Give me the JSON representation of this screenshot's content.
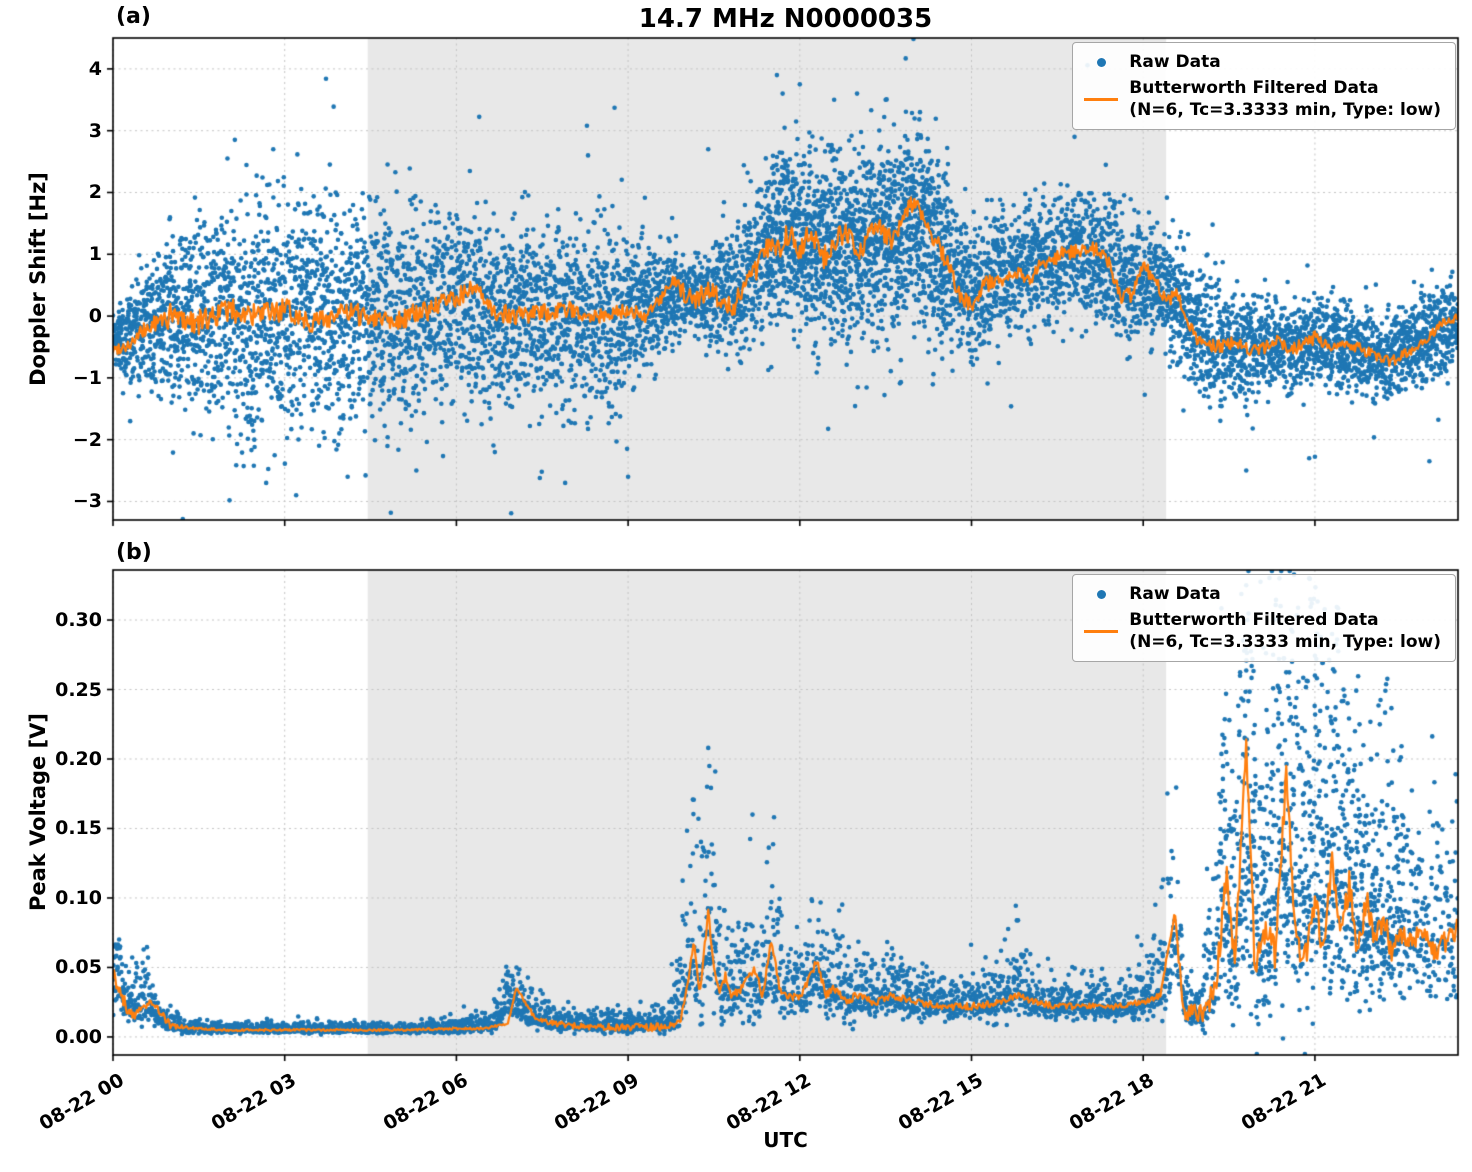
{
  "figure": {
    "title": "14.7 MHz N0000035",
    "xlabel": "UTC",
    "panel_tags": [
      "(a)",
      "(b)"
    ],
    "colors": {
      "raw": "#1f77b4",
      "filtered": "#ff7f0e",
      "shade": "#e8e8e8",
      "grid": "#c4c4c4",
      "axis": "#000000"
    },
    "legend": {
      "raw_label": "Raw Data",
      "filtered_label": "Butterworth Filtered Data",
      "filtered_sublabel": "(N=6, Tc=3.3333 min, Type: low)"
    }
  },
  "chart_data": [
    {
      "type": "scatter",
      "panel": "a",
      "title": "14.7 MHz N0000035",
      "ylabel": "Doppler Shift [Hz]",
      "x_unit": "hours since 08-22 00:00 UTC",
      "xlim": [
        0,
        23.5
      ],
      "ylim": [
        -3.3,
        4.5
      ],
      "yticks": [
        -3,
        -2,
        -1,
        0,
        1,
        2,
        3,
        4
      ],
      "ytick_labels": [
        "−3",
        "−2",
        "−1",
        "0",
        "1",
        "2",
        "3",
        "4"
      ],
      "xticks": [
        0,
        3,
        6,
        9,
        12,
        15,
        18,
        21
      ],
      "xtick_labels": [
        "08-22 00",
        "08-22 03",
        "08-22 06",
        "08-22 09",
        "08-22 12",
        "08-22 15",
        "08-22 18",
        "08-22 21"
      ],
      "shaded_region": [
        4.45,
        18.4
      ],
      "grid": true,
      "legend_position": "upper right",
      "raw_series": {
        "name": "Raw Data",
        "marker": "point",
        "envelope_t": [
          0,
          0.5,
          1.0,
          1.5,
          2.0,
          2.5,
          3.0,
          3.5,
          4.0,
          4.5,
          5.0,
          5.5,
          6.0,
          6.5,
          7.0,
          7.5,
          8.0,
          8.5,
          9.0,
          9.5,
          10.0,
          10.3,
          10.6,
          11.0,
          11.4,
          11.8,
          12.2,
          12.6,
          13.0,
          13.4,
          13.8,
          14.2,
          14.6,
          15.0,
          15.4,
          15.8,
          16.2,
          16.6,
          17.0,
          17.4,
          17.8,
          18.2,
          18.6,
          19.0,
          19.4,
          19.8,
          20.2,
          20.6,
          21.0,
          21.4,
          21.8,
          22.2,
          22.6,
          23.0,
          23.5
        ],
        "envelope_mean": [
          -0.35,
          -0.3,
          0,
          0,
          0,
          0,
          0,
          0,
          0,
          0,
          0,
          0.1,
          0.2,
          0,
          0,
          0,
          0.05,
          0,
          0,
          0.3,
          0.3,
          0.3,
          0.3,
          0.5,
          1.0,
          1.2,
          1.2,
          1.1,
          1.2,
          1.3,
          1.5,
          1.4,
          0.9,
          0.3,
          0.6,
          0.7,
          0.9,
          1.0,
          1.0,
          0.9,
          0.5,
          0.6,
          0.2,
          -0.4,
          -0.5,
          -0.5,
          -0.5,
          -0.5,
          -0.4,
          -0.5,
          -0.6,
          -0.7,
          -0.5,
          -0.3,
          -0.1
        ],
        "envelope_spread": [
          0.35,
          0.8,
          1.2,
          1.5,
          1.6,
          1.7,
          1.6,
          1.6,
          1.6,
          1.5,
          1.5,
          1.5,
          1.5,
          1.4,
          1.3,
          1.3,
          1.3,
          1.3,
          1.2,
          0.8,
          0.5,
          0.6,
          0.8,
          0.9,
          1.2,
          1.3,
          1.4,
          1.4,
          1.4,
          1.4,
          1.3,
          1.3,
          1.2,
          0.9,
          0.9,
          0.9,
          0.9,
          0.9,
          0.9,
          0.9,
          0.9,
          0.8,
          0.9,
          0.9,
          0.8,
          0.7,
          0.6,
          0.6,
          0.6,
          0.6,
          0.6,
          0.6,
          0.6,
          0.6,
          0.6
        ],
        "outliers": [
          [
            0.3,
            -1.7
          ],
          [
            2.0,
            2.55
          ],
          [
            2.8,
            2.7
          ],
          [
            3.2,
            -2.9
          ],
          [
            4.1,
            -2.6
          ],
          [
            5.3,
            -2.5
          ],
          [
            7.9,
            -2.7
          ],
          [
            8.3,
            2.6
          ],
          [
            9.0,
            -2.6
          ],
          [
            10.4,
            2.7
          ],
          [
            11.6,
            3.9
          ],
          [
            11.7,
            3.6
          ],
          [
            12.0,
            3.75
          ],
          [
            12.6,
            3.5
          ],
          [
            13.0,
            3.6
          ],
          [
            13.5,
            3.5
          ],
          [
            13.85,
            4.17
          ],
          [
            14.1,
            3.3
          ],
          [
            16.8,
            2.9
          ],
          [
            19.8,
            -2.5
          ],
          [
            20.9,
            -2.3
          ],
          [
            23.0,
            -2.35
          ]
        ]
      },
      "filtered_series": {
        "name": "Butterworth Filtered Data (N=6, Tc=3.3333 min, Type: low)",
        "t": [
          0,
          0.3,
          0.6,
          1.0,
          1.5,
          2.0,
          2.5,
          3.0,
          3.5,
          4.0,
          4.5,
          5.0,
          5.5,
          6.0,
          6.3,
          6.6,
          7.0,
          7.5,
          8.0,
          8.5,
          9.0,
          9.3,
          9.6,
          9.8,
          10.0,
          10.2,
          10.4,
          10.6,
          10.8,
          11.0,
          11.2,
          11.4,
          11.6,
          11.8,
          12.0,
          12.2,
          12.4,
          12.6,
          12.8,
          13.0,
          13.2,
          13.4,
          13.6,
          13.8,
          14.0,
          14.2,
          14.4,
          14.6,
          14.8,
          15.0,
          15.2,
          15.5,
          15.8,
          16.0,
          16.3,
          16.6,
          16.9,
          17.2,
          17.4,
          17.6,
          17.8,
          18.0,
          18.2,
          18.4,
          18.6,
          18.8,
          19.0,
          19.3,
          19.6,
          20.0,
          20.3,
          20.6,
          21.0,
          21.3,
          21.6,
          22.0,
          22.3,
          22.6,
          22.9,
          23.2,
          23.5
        ],
        "y": [
          -0.55,
          -0.45,
          -0.2,
          0.0,
          -0.1,
          0.1,
          0.0,
          0.1,
          -0.1,
          0.05,
          0.0,
          -0.05,
          0.1,
          0.3,
          0.45,
          0.1,
          0.0,
          0.05,
          0.1,
          0.0,
          0.1,
          0.0,
          0.3,
          0.55,
          0.35,
          0.25,
          0.45,
          0.3,
          0.15,
          0.4,
          0.7,
          1.2,
          1.0,
          1.35,
          1.1,
          1.45,
          0.9,
          1.2,
          1.35,
          1.0,
          1.3,
          1.45,
          1.2,
          1.55,
          1.9,
          1.4,
          1.2,
          0.8,
          0.35,
          0.15,
          0.5,
          0.6,
          0.7,
          0.6,
          0.9,
          1.0,
          1.05,
          1.1,
          0.9,
          0.3,
          0.35,
          0.8,
          0.6,
          0.2,
          0.4,
          -0.2,
          -0.4,
          -0.5,
          -0.4,
          -0.6,
          -0.4,
          -0.55,
          -0.35,
          -0.5,
          -0.45,
          -0.6,
          -0.75,
          -0.6,
          -0.4,
          -0.15,
          0.0
        ],
        "wiggle_t": [
          0,
          1,
          7,
          9.5,
          11,
          15,
          19,
          23.5
        ],
        "wiggle": [
          0.08,
          0.2,
          0.16,
          0.1,
          0.22,
          0.13,
          0.12,
          0.08
        ]
      }
    },
    {
      "type": "scatter",
      "panel": "b",
      "ylabel": "Peak Voltage [V]",
      "xlabel": "UTC",
      "x_unit": "hours since 08-22 00:00 UTC",
      "xlim": [
        0,
        23.5
      ],
      "ylim": [
        -0.013,
        0.336
      ],
      "yticks": [
        0,
        0.05,
        0.1,
        0.15,
        0.2,
        0.25,
        0.3
      ],
      "ytick_labels": [
        "0.00",
        "0.05",
        "0.10",
        "0.15",
        "0.20",
        "0.25",
        "0.30"
      ],
      "xticks": [
        0,
        3,
        6,
        9,
        12,
        15,
        18,
        21
      ],
      "xtick_labels": [
        "08-22 00",
        "08-22 03",
        "08-22 06",
        "08-22 09",
        "08-22 12",
        "08-22 15",
        "08-22 18",
        "08-22 21"
      ],
      "shaded_region": [
        4.45,
        18.4
      ],
      "grid": true,
      "legend_position": "upper right",
      "raw_series": {
        "name": "Raw Data",
        "marker": "point",
        "skew_positive": true,
        "envelope_t": [
          0,
          0.3,
          0.6,
          0.9,
          1.2,
          2.0,
          3.0,
          4.0,
          5.0,
          6.0,
          6.6,
          7.0,
          7.3,
          7.7,
          8.5,
          9.3,
          9.8,
          10.1,
          10.25,
          10.4,
          10.55,
          10.7,
          10.9,
          11.1,
          11.3,
          11.5,
          11.7,
          11.9,
          12.1,
          12.3,
          12.5,
          12.7,
          12.9,
          13.1,
          13.4,
          13.7,
          14.0,
          14.5,
          15.0,
          15.5,
          15.8,
          16.1,
          16.5,
          17.0,
          17.5,
          18.0,
          18.3,
          18.55,
          18.75,
          19.0,
          19.2,
          19.4,
          19.6,
          19.8,
          20.0,
          20.2,
          20.4,
          20.6,
          20.8,
          21.0,
          21.2,
          21.4,
          21.6,
          21.8,
          22.0,
          22.2,
          22.4,
          22.6,
          22.8,
          23.0,
          23.2,
          23.5
        ],
        "envelope_mean": [
          0.04,
          0.02,
          0.025,
          0.01,
          0.006,
          0.005,
          0.005,
          0.005,
          0.005,
          0.006,
          0.008,
          0.03,
          0.015,
          0.01,
          0.008,
          0.008,
          0.012,
          0.06,
          0.04,
          0.08,
          0.05,
          0.04,
          0.035,
          0.045,
          0.03,
          0.06,
          0.035,
          0.03,
          0.03,
          0.045,
          0.03,
          0.035,
          0.025,
          0.03,
          0.028,
          0.03,
          0.025,
          0.022,
          0.022,
          0.025,
          0.035,
          0.025,
          0.022,
          0.022,
          0.022,
          0.025,
          0.035,
          0.07,
          0.02,
          0.015,
          0.05,
          0.1,
          0.07,
          0.15,
          0.08,
          0.09,
          0.15,
          0.12,
          0.1,
          0.13,
          0.1,
          0.12,
          0.1,
          0.09,
          0.08,
          0.09,
          0.07,
          0.08,
          0.07,
          0.06,
          0.075,
          0.08
        ],
        "envelope_spread": [
          0.02,
          0.01,
          0.012,
          0.005,
          0.003,
          0.002,
          0.002,
          0.002,
          0.002,
          0.003,
          0.004,
          0.012,
          0.008,
          0.005,
          0.004,
          0.004,
          0.008,
          0.04,
          0.03,
          0.05,
          0.03,
          0.025,
          0.02,
          0.03,
          0.015,
          0.035,
          0.02,
          0.015,
          0.015,
          0.025,
          0.015,
          0.02,
          0.012,
          0.015,
          0.012,
          0.015,
          0.01,
          0.008,
          0.008,
          0.012,
          0.015,
          0.01,
          0.008,
          0.008,
          0.008,
          0.01,
          0.02,
          0.035,
          0.01,
          0.008,
          0.04,
          0.06,
          0.05,
          0.09,
          0.06,
          0.06,
          0.09,
          0.08,
          0.07,
          0.09,
          0.07,
          0.07,
          0.06,
          0.05,
          0.05,
          0.05,
          0.04,
          0.04,
          0.04,
          0.035,
          0.04,
          0.045
        ],
        "outliers": [
          [
            7.05,
            0.05
          ],
          [
            10.38,
            0.18
          ],
          [
            10.4,
            0.208
          ],
          [
            10.42,
            0.195
          ],
          [
            19.45,
            0.205
          ],
          [
            19.8,
            0.325
          ],
          [
            19.82,
            0.3
          ],
          [
            20.1,
            0.28
          ],
          [
            20.38,
            0.33
          ],
          [
            20.4,
            0.31
          ],
          [
            20.6,
            0.27
          ],
          [
            20.9,
            0.33
          ],
          [
            20.92,
            0.315
          ],
          [
            21.0,
            0.26
          ],
          [
            21.3,
            0.29
          ],
          [
            21.5,
            0.25
          ],
          [
            21.7,
            0.22
          ],
          [
            22.0,
            0.16
          ],
          [
            23.4,
            0.155
          ]
        ]
      },
      "filtered_series": {
        "name": "Butterworth Filtered Data (N=6, Tc=3.3333 min, Type: low)",
        "t": [
          0,
          0.1,
          0.25,
          0.4,
          0.6,
          0.8,
          1.0,
          1.5,
          2.0,
          3.0,
          4.0,
          5.0,
          6.0,
          6.5,
          6.9,
          7.05,
          7.2,
          7.4,
          7.7,
          8.0,
          8.5,
          9.0,
          9.5,
          9.9,
          10.05,
          10.15,
          10.25,
          10.4,
          10.5,
          10.6,
          10.7,
          10.8,
          11.0,
          11.2,
          11.35,
          11.5,
          11.65,
          11.8,
          12.0,
          12.3,
          12.45,
          12.6,
          12.8,
          13.0,
          13.3,
          13.6,
          14.0,
          14.5,
          15.0,
          15.5,
          15.8,
          16.1,
          16.5,
          17.0,
          17.5,
          18.0,
          18.3,
          18.55,
          18.7,
          18.9,
          19.1,
          19.3,
          19.45,
          19.6,
          19.8,
          19.95,
          20.1,
          20.3,
          20.5,
          20.65,
          20.8,
          21.0,
          21.15,
          21.3,
          21.45,
          21.6,
          21.75,
          21.9,
          22.05,
          22.2,
          22.35,
          22.5,
          22.7,
          22.9,
          23.1,
          23.3,
          23.5
        ],
        "y": [
          0.045,
          0.035,
          0.02,
          0.015,
          0.025,
          0.02,
          0.008,
          0.006,
          0.005,
          0.005,
          0.005,
          0.005,
          0.006,
          0.006,
          0.01,
          0.035,
          0.025,
          0.012,
          0.01,
          0.008,
          0.007,
          0.007,
          0.007,
          0.01,
          0.04,
          0.07,
          0.03,
          0.09,
          0.05,
          0.03,
          0.045,
          0.03,
          0.035,
          0.05,
          0.03,
          0.07,
          0.035,
          0.03,
          0.028,
          0.055,
          0.03,
          0.035,
          0.025,
          0.03,
          0.025,
          0.03,
          0.025,
          0.022,
          0.022,
          0.025,
          0.03,
          0.025,
          0.022,
          0.022,
          0.022,
          0.025,
          0.03,
          0.09,
          0.02,
          0.015,
          0.015,
          0.05,
          0.12,
          0.05,
          0.21,
          0.05,
          0.08,
          0.06,
          0.19,
          0.08,
          0.05,
          0.1,
          0.06,
          0.13,
          0.07,
          0.11,
          0.06,
          0.1,
          0.07,
          0.085,
          0.06,
          0.075,
          0.065,
          0.08,
          0.06,
          0.07,
          0.078
        ],
        "wiggle_t": [
          0,
          0.8,
          1.5,
          6.8,
          7.5,
          9.9,
          12,
          18.4,
          19.2,
          23.5
        ],
        "wiggle": [
          0.005,
          0.003,
          0.0008,
          0.0008,
          0.002,
          0.003,
          0.003,
          0.002,
          0.012,
          0.008
        ]
      }
    }
  ]
}
